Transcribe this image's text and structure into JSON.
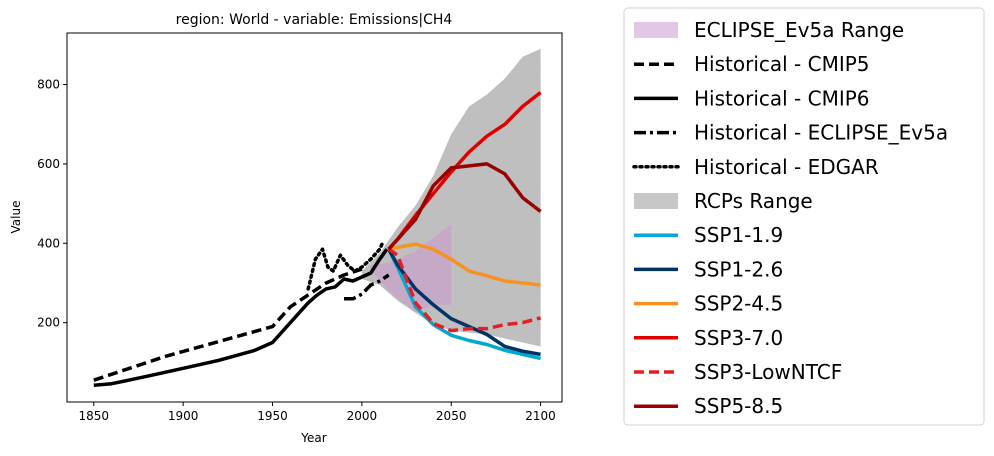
{
  "chart_data": {
    "type": "line",
    "title": "region: World - variable: Emissions|CH4",
    "xlabel": "Year",
    "ylabel": "Value",
    "xlim": [
      1835,
      2112
    ],
    "ylim": [
      0,
      930
    ],
    "xticks": [
      1850,
      1900,
      1950,
      2000,
      2050,
      2100
    ],
    "yticks": [
      200,
      400,
      600,
      800
    ],
    "grid": false,
    "legend_position": "outside-right",
    "ranges": [
      {
        "name": "RCPs Range",
        "color": "#bfbfbf",
        "upper": [
          [
            2000,
            330
          ],
          [
            2010,
            375
          ],
          [
            2020,
            440
          ],
          [
            2030,
            495
          ],
          [
            2040,
            570
          ],
          [
            2050,
            675
          ],
          [
            2060,
            745
          ],
          [
            2070,
            775
          ],
          [
            2080,
            815
          ],
          [
            2090,
            870
          ],
          [
            2100,
            890
          ]
        ],
        "lower": [
          [
            2100,
            140
          ],
          [
            2090,
            150
          ],
          [
            2080,
            160
          ],
          [
            2070,
            170
          ],
          [
            2060,
            175
          ],
          [
            2050,
            180
          ],
          [
            2040,
            195
          ],
          [
            2030,
            225
          ],
          [
            2020,
            255
          ],
          [
            2010,
            295
          ],
          [
            2000,
            310
          ]
        ]
      },
      {
        "name": "ECLIPSE_Ev5a Range",
        "color": "#c8a2c8",
        "upper": [
          [
            2005,
            345
          ],
          [
            2015,
            350
          ],
          [
            2030,
            380
          ],
          [
            2050,
            448
          ]
        ],
        "lower": [
          [
            2050,
            245
          ],
          [
            2040,
            245
          ],
          [
            2030,
            225
          ],
          [
            2015,
            280
          ],
          [
            2005,
            335
          ]
        ]
      }
    ],
    "series": [
      {
        "name": "Historical - CMIP5",
        "color": "#000000",
        "dash": "dashed",
        "x": [
          1850,
          1870,
          1890,
          1910,
          1930,
          1950,
          1960,
          1970,
          1980,
          1990,
          2000
        ],
        "y": [
          55,
          85,
          115,
          140,
          165,
          190,
          240,
          270,
          300,
          320,
          335
        ]
      },
      {
        "name": "Historical - CMIP6",
        "color": "#000000",
        "dash": "solid",
        "x": [
          1850,
          1860,
          1880,
          1900,
          1920,
          1940,
          1950,
          1960,
          1970,
          1975,
          1980,
          1985,
          1990,
          1995,
          2000,
          2005,
          2010,
          2014
        ],
        "y": [
          42,
          46,
          65,
          85,
          105,
          130,
          150,
          200,
          250,
          270,
          285,
          290,
          310,
          305,
          315,
          325,
          360,
          385
        ]
      },
      {
        "name": "Historical - ECLIPSE_Ev5a",
        "color": "#000000",
        "dash": "dashdot",
        "x": [
          1990,
          1995,
          2000,
          2005,
          2010,
          2015
        ],
        "y": [
          260,
          260,
          272,
          295,
          305,
          320
        ]
      },
      {
        "name": "Historical - EDGAR",
        "color": "#000000",
        "dash": "dotted",
        "x": [
          1970,
          1974,
          1978,
          1981,
          1984,
          1988,
          1992,
          1996,
          2000,
          2005,
          2010,
          2012
        ],
        "y": [
          285,
          360,
          385,
          340,
          330,
          370,
          345,
          330,
          340,
          360,
          385,
          405
        ]
      },
      {
        "name": "SSP1-1.9",
        "color": "#00a9cf",
        "dash": "solid",
        "x": [
          2015,
          2020,
          2030,
          2040,
          2050,
          2060,
          2070,
          2080,
          2090,
          2100
        ],
        "y": [
          385,
          340,
          240,
          195,
          168,
          155,
          145,
          130,
          120,
          110
        ]
      },
      {
        "name": "SSP1-2.6",
        "color": "#003466",
        "dash": "solid",
        "x": [
          2015,
          2020,
          2030,
          2040,
          2050,
          2060,
          2070,
          2080,
          2090,
          2100
        ],
        "y": [
          385,
          345,
          285,
          245,
          210,
          190,
          170,
          140,
          128,
          120
        ]
      },
      {
        "name": "SSP2-4.5",
        "color": "#f69320",
        "dash": "solid",
        "x": [
          2015,
          2020,
          2030,
          2040,
          2050,
          2060,
          2070,
          2080,
          2090,
          2100
        ],
        "y": [
          385,
          390,
          398,
          385,
          360,
          330,
          318,
          305,
          300,
          295
        ]
      },
      {
        "name": "SSP3-7.0",
        "color": "#df0000",
        "dash": "solid",
        "x": [
          2015,
          2020,
          2030,
          2040,
          2050,
          2060,
          2070,
          2080,
          2090,
          2100
        ],
        "y": [
          385,
          410,
          470,
          525,
          580,
          630,
          670,
          700,
          745,
          780
        ]
      },
      {
        "name": "SSP3-LowNTCF",
        "color": "#e71d25",
        "dash": "dashed",
        "x": [
          2015,
          2020,
          2030,
          2040,
          2050,
          2060,
          2070,
          2080,
          2090,
          2100
        ],
        "y": [
          385,
          370,
          250,
          198,
          180,
          185,
          185,
          195,
          200,
          212
        ]
      },
      {
        "name": "SSP5-8.5",
        "color": "#980002",
        "dash": "solid",
        "x": [
          2015,
          2020,
          2030,
          2040,
          2050,
          2060,
          2070,
          2080,
          2090,
          2100
        ],
        "y": [
          385,
          410,
          460,
          545,
          590,
          595,
          600,
          575,
          515,
          480
        ]
      }
    ],
    "legend": [
      {
        "label": "ECLIPSE_Ev5a Range",
        "kind": "patch",
        "color": "#e2c8e4"
      },
      {
        "label": "Historical - CMIP5",
        "kind": "line",
        "color": "#000000",
        "dash": "dashed"
      },
      {
        "label": "Historical - CMIP6",
        "kind": "line",
        "color": "#000000",
        "dash": "solid"
      },
      {
        "label": "Historical - ECLIPSE_Ev5a",
        "kind": "line",
        "color": "#000000",
        "dash": "dashdot"
      },
      {
        "label": "Historical - EDGAR",
        "kind": "line",
        "color": "#000000",
        "dash": "dotted"
      },
      {
        "label": "RCPs Range",
        "kind": "patch",
        "color": "#c7c7c7"
      },
      {
        "label": "SSP1-1.9",
        "kind": "line",
        "color": "#00a9cf",
        "dash": "solid"
      },
      {
        "label": "SSP1-2.6",
        "kind": "line",
        "color": "#003466",
        "dash": "solid"
      },
      {
        "label": "SSP2-4.5",
        "kind": "line",
        "color": "#f69320",
        "dash": "solid"
      },
      {
        "label": "SSP3-7.0",
        "kind": "line",
        "color": "#df0000",
        "dash": "solid"
      },
      {
        "label": "SSP3-LowNTCF",
        "kind": "line",
        "color": "#e71d25",
        "dash": "dashed"
      },
      {
        "label": "SSP5-8.5",
        "kind": "line",
        "color": "#980002",
        "dash": "solid"
      }
    ]
  }
}
